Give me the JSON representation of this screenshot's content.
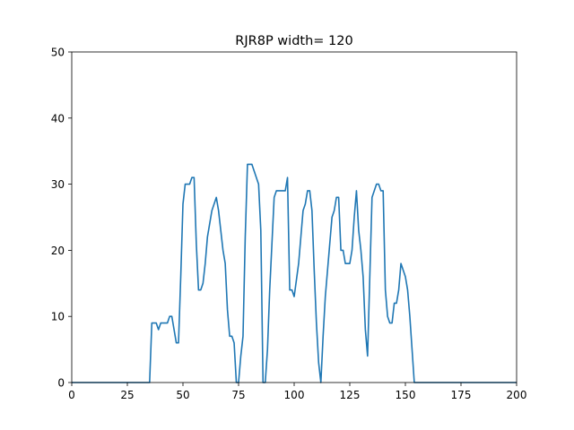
{
  "chart_data": {
    "type": "line",
    "title": "RJR8P width= 120",
    "xlabel": "",
    "ylabel": "",
    "xlim": [
      0,
      200
    ],
    "ylim": [
      0,
      50
    ],
    "xticks": [
      0,
      25,
      50,
      75,
      100,
      125,
      150,
      175,
      200
    ],
    "yticks": [
      0,
      10,
      20,
      30,
      40,
      50
    ],
    "grid": false,
    "line_color": "#1f77b4",
    "series": [
      {
        "x": [
          0,
          35,
          36,
          38,
          39,
          40,
          43,
          44,
          45,
          47,
          48,
          49,
          50,
          51,
          53,
          54,
          55,
          56,
          57,
          58,
          59,
          60,
          61,
          63,
          65,
          66,
          67,
          68,
          69,
          70,
          71,
          72,
          73,
          74,
          75,
          76,
          77,
          78,
          79,
          81,
          82,
          84,
          85,
          86,
          87,
          88,
          89,
          91,
          92,
          94,
          96,
          97,
          98,
          99,
          100,
          102,
          104,
          105,
          106,
          107,
          108,
          109,
          110,
          111,
          112,
          113,
          114,
          115,
          116,
          117,
          118,
          119,
          120,
          121,
          122,
          123,
          124,
          125,
          126,
          127,
          128,
          129,
          130,
          131,
          132,
          133,
          135,
          136,
          137,
          138,
          139,
          140,
          141,
          142,
          143,
          144,
          145,
          146,
          147,
          148,
          150,
          151,
          152,
          153,
          154,
          155,
          200
        ],
        "y": [
          0,
          0,
          9,
          9,
          8,
          9,
          9,
          10,
          10,
          6,
          6,
          16,
          27,
          30,
          30,
          31,
          31,
          21,
          14,
          14,
          15,
          18,
          22,
          26,
          28,
          26,
          23,
          20,
          18,
          11,
          7,
          7,
          6,
          0,
          0,
          4,
          7,
          22,
          33,
          33,
          32,
          30,
          23,
          0,
          0,
          5,
          14,
          28,
          29,
          29,
          29,
          31,
          14,
          14,
          13,
          18,
          26,
          27,
          29,
          29,
          26,
          17,
          9,
          3,
          0,
          7,
          13,
          17,
          21,
          25,
          26,
          28,
          28,
          20,
          20,
          18,
          18,
          18,
          20,
          25,
          29,
          23,
          20,
          16,
          8,
          4,
          28,
          29,
          30,
          30,
          29,
          29,
          14,
          10,
          9,
          9,
          12,
          12,
          14,
          18,
          16,
          14,
          10,
          5,
          0,
          0,
          0
        ]
      }
    ]
  }
}
